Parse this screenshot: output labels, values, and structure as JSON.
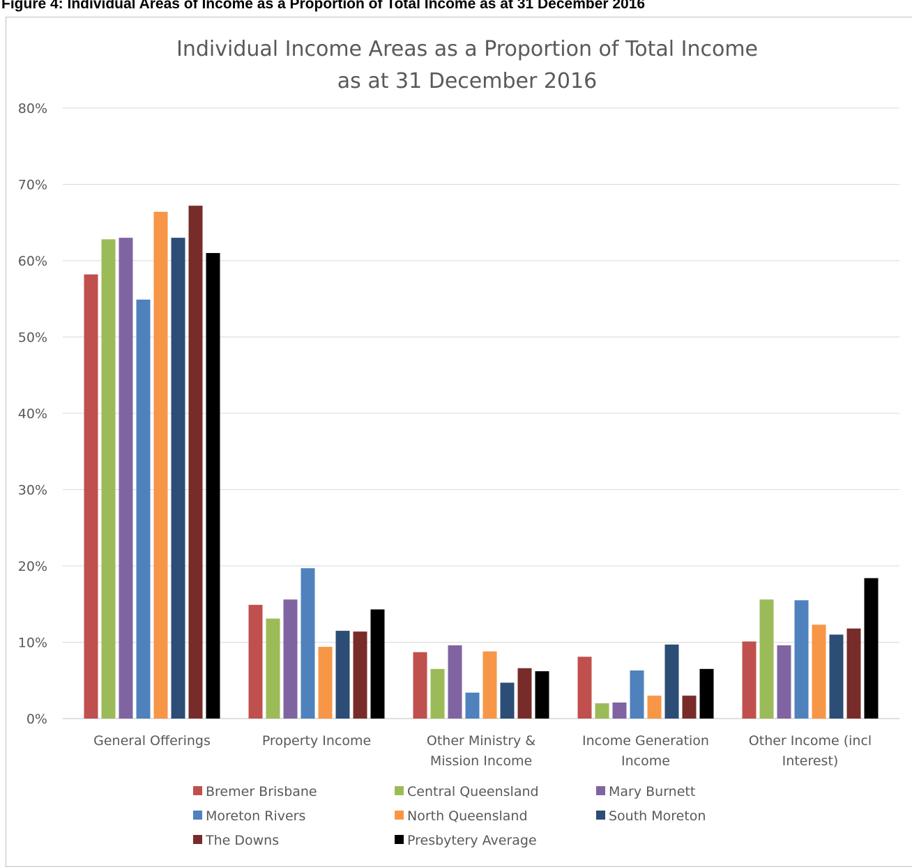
{
  "caption": "Figure 4: Individual Areas of Income as a Proportion of Total Income as at 31 December 2016",
  "chart_data": {
    "type": "bar",
    "title": [
      "Individual Income Areas as a Proportion of Total Income",
      "as at 31 December 2016"
    ],
    "xlabel": "",
    "ylabel": "",
    "ylim": [
      0,
      80
    ],
    "yticks": [
      0,
      10,
      20,
      30,
      40,
      50,
      60,
      70,
      80
    ],
    "ytick_suffix": "%",
    "grid": true,
    "legend_position": "bottom",
    "categories": [
      [
        "General Offerings"
      ],
      [
        "Property Income"
      ],
      [
        "Other Ministry &",
        "Mission Income"
      ],
      [
        "Income Generation",
        "Income"
      ],
      [
        "Other Income (incl",
        "Interest)"
      ]
    ],
    "series": [
      {
        "name": "Bremer Brisbane",
        "color": "#c0504d",
        "values": [
          58.2,
          14.9,
          8.7,
          8.1,
          10.1
        ]
      },
      {
        "name": "Central Queensland",
        "color": "#9bbb59",
        "values": [
          62.8,
          13.1,
          6.5,
          2.0,
          15.6
        ]
      },
      {
        "name": "Mary Burnett",
        "color": "#8064a2",
        "values": [
          63.0,
          15.6,
          9.6,
          2.1,
          9.6
        ]
      },
      {
        "name": "Moreton Rivers",
        "color": "#4f81bd",
        "values": [
          54.9,
          19.7,
          3.4,
          6.3,
          15.5
        ]
      },
      {
        "name": "North Queensland",
        "color": "#f79646",
        "values": [
          66.4,
          9.4,
          8.8,
          3.0,
          12.3
        ]
      },
      {
        "name": "South Moreton",
        "color": "#2c4d75",
        "values": [
          63.0,
          11.5,
          4.7,
          9.7,
          11.0
        ]
      },
      {
        "name": "The Downs",
        "color": "#772c2a",
        "values": [
          67.2,
          11.4,
          6.6,
          3.0,
          11.8
        ]
      },
      {
        "name": "Presbytery Average",
        "color": "#000000",
        "values": [
          61.0,
          14.3,
          6.2,
          6.5,
          18.4
        ]
      }
    ]
  }
}
